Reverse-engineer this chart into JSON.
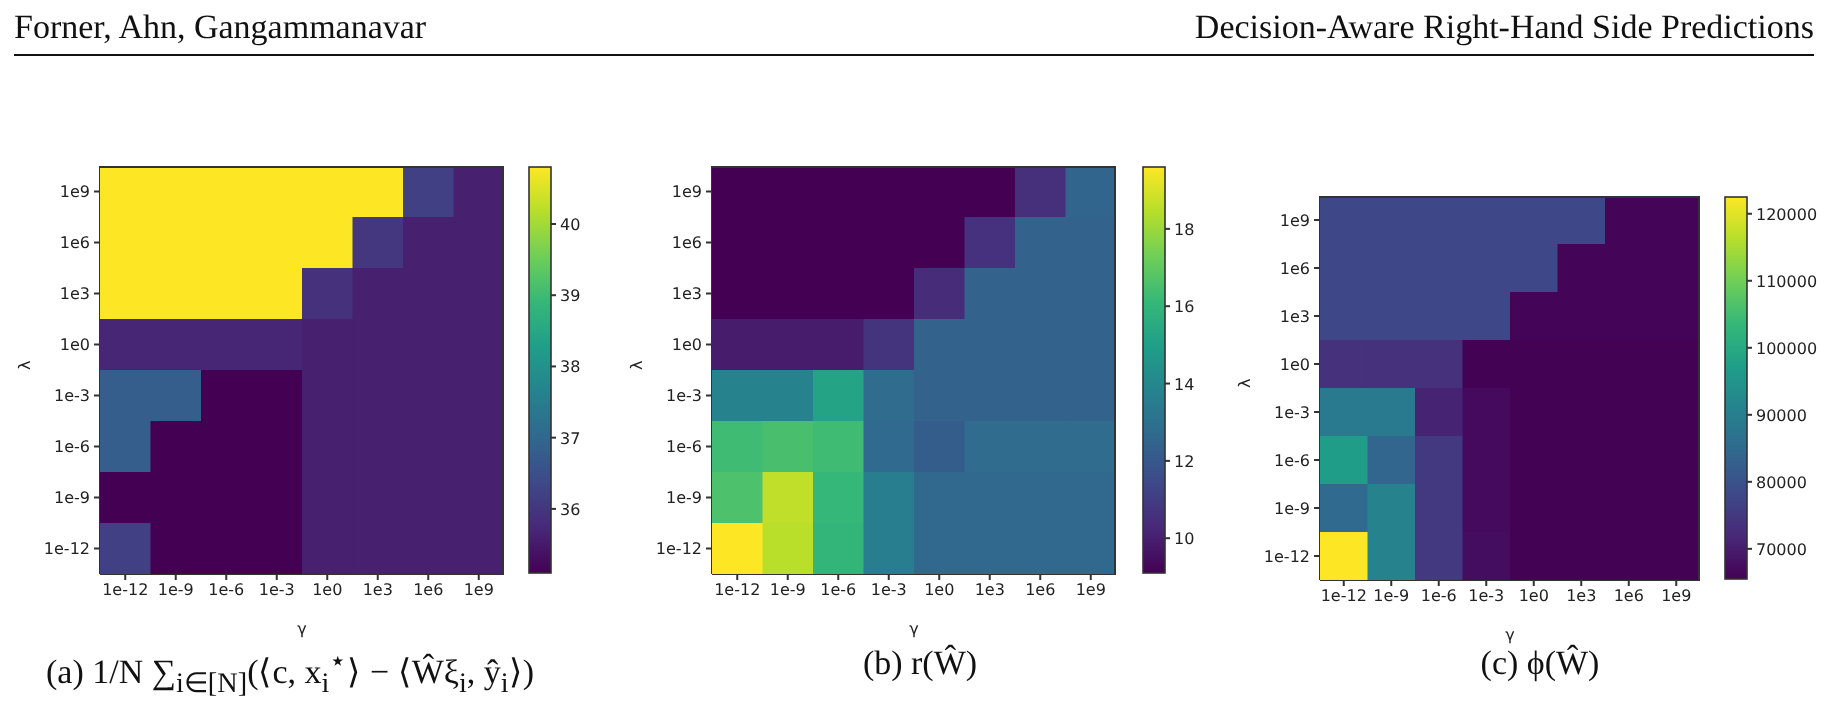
{
  "chart_data": [
    {
      "type": "heatmap",
      "title": "(a) 1/N ∑$_{i∈[N]}$(⟨c, x$_{i}$$^{⋆}$⟩ − ⟨Ŵξ$_{i}$, ŷ$_{i}$⟩)",
      "xlabel": "γ",
      "ylabel": "λ",
      "annotations": [
        "Forner, Ahn, Gangammanavar",
        "Decision-Aware Right-Hand Side Predictions"
      ],
      "categories": [
        "1e-12",
        "1e-9",
        "1e-6",
        "1e-3",
        "1e0",
        "1e3",
        "1e6",
        "1e9"
      ],
      "y_categories": [
        "1e9",
        "1e6",
        "1e3",
        "1e0",
        "1e-3",
        "1e-6",
        "1e-9",
        "1e-12"
      ],
      "cells": [
        [
          40.8,
          40.8,
          40.8,
          40.8,
          40.8,
          40.8,
          36.2,
          35.6
        ],
        [
          40.8,
          40.8,
          40.8,
          40.8,
          40.8,
          36.0,
          35.6,
          35.6
        ],
        [
          40.8,
          40.8,
          40.8,
          40.8,
          35.9,
          35.6,
          35.6,
          35.6
        ],
        [
          35.7,
          35.7,
          35.7,
          35.7,
          35.6,
          35.6,
          35.6,
          35.6
        ],
        [
          36.8,
          36.8,
          35.1,
          35.1,
          35.6,
          35.6,
          35.6,
          35.6
        ],
        [
          36.8,
          35.1,
          35.1,
          35.1,
          35.6,
          35.6,
          35.6,
          35.6
        ],
        [
          35.1,
          35.1,
          35.1,
          35.1,
          35.6,
          35.6,
          35.6,
          35.6
        ],
        [
          36.2,
          35.1,
          35.1,
          35.1,
          35.6,
          35.6,
          35.6,
          35.6
        ]
      ],
      "clim": [
        35.1,
        40.8
      ],
      "cticks": [
        36,
        37,
        38,
        39,
        40
      ]
    },
    {
      "type": "heatmap",
      "title": "(b) r(Ŵ)",
      "xlabel": "γ",
      "ylabel": "λ",
      "categories": [
        "1e-12",
        "1e-9",
        "1e-6",
        "1e-3",
        "1e0",
        "1e3",
        "1e6",
        "1e9"
      ],
      "y_categories": [
        "1e9",
        "1e6",
        "1e3",
        "1e0",
        "1e-3",
        "1e-6",
        "1e-9",
        "1e-12"
      ],
      "cells": [
        [
          9.1,
          9.1,
          9.1,
          9.1,
          9.1,
          9.1,
          10.5,
          12.5
        ],
        [
          9.1,
          9.1,
          9.1,
          9.1,
          9.1,
          10.6,
          12.4,
          12.4
        ],
        [
          9.1,
          9.1,
          9.1,
          9.1,
          10.4,
          12.4,
          12.4,
          12.4
        ],
        [
          9.9,
          9.9,
          9.9,
          10.7,
          12.4,
          12.4,
          12.4,
          12.4
        ],
        [
          13.8,
          13.8,
          15.2,
          12.8,
          12.4,
          12.4,
          12.4,
          12.4
        ],
        [
          16.3,
          16.5,
          16.3,
          12.7,
          12.2,
          12.8,
          12.8,
          12.8
        ],
        [
          16.6,
          18.6,
          16.1,
          13.6,
          12.6,
          12.6,
          12.6,
          12.6
        ],
        [
          19.6,
          18.5,
          16.0,
          13.6,
          12.6,
          12.6,
          12.6,
          12.6
        ]
      ],
      "clim": [
        9.1,
        19.6
      ],
      "cticks": [
        10,
        12,
        14,
        16,
        18
      ]
    },
    {
      "type": "heatmap",
      "title": "(c) ϕ(Ŵ)",
      "xlabel": "γ",
      "ylabel": "λ",
      "categories": [
        "1e-12",
        "1e-9",
        "1e-6",
        "1e-3",
        "1e0",
        "1e3",
        "1e6",
        "1e9"
      ],
      "y_categories": [
        "1e9",
        "1e6",
        "1e3",
        "1e0",
        "1e-3",
        "1e-6",
        "1e-9",
        "1e-12"
      ],
      "cells": [
        [
          78000,
          78000,
          78000,
          78000,
          78000,
          78000,
          66000,
          66000
        ],
        [
          78000,
          78000,
          78000,
          78000,
          78000,
          66000,
          66000,
          66000
        ],
        [
          78000,
          78000,
          78000,
          78000,
          66000,
          66000,
          66000,
          66000
        ],
        [
          73500,
          73500,
          73500,
          65700,
          65700,
          65700,
          65700,
          65700
        ],
        [
          89000,
          89000,
          71000,
          67000,
          65700,
          65700,
          65700,
          65700
        ],
        [
          97000,
          84000,
          75000,
          67000,
          65700,
          65700,
          65700,
          65700
        ],
        [
          85000,
          91000,
          75000,
          67000,
          65700,
          65700,
          65700,
          65700
        ],
        [
          122500,
          91000,
          75000,
          67500,
          65700,
          65700,
          65700,
          65700
        ]
      ],
      "clim": [
        65500,
        122500
      ],
      "cticks": [
        70000,
        80000,
        90000,
        100000,
        110000,
        120000
      ]
    }
  ]
}
